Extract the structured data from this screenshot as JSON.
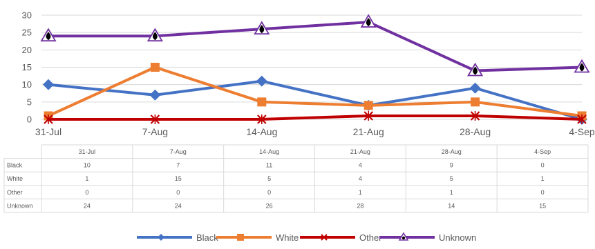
{
  "chart_data": {
    "type": "line",
    "categories": [
      "31-Jul",
      "7-Aug",
      "14-Aug",
      "21-Aug",
      "28-Aug",
      "4-Sep"
    ],
    "y_ticks": [
      0,
      5,
      10,
      15,
      20,
      25,
      30
    ],
    "ylim": [
      0,
      30
    ],
    "grid": true,
    "legend_position": "bottom",
    "data_table": true,
    "series": [
      {
        "name": "Black",
        "values": [
          10,
          7,
          11,
          4,
          9,
          0
        ],
        "color": "#4472C4",
        "marker": "diamond"
      },
      {
        "name": "White",
        "values": [
          1,
          15,
          5,
          4,
          5,
          1
        ],
        "color": "#ED7D31",
        "marker": "square"
      },
      {
        "name": "Other",
        "values": [
          0,
          0,
          0,
          1,
          1,
          0
        ],
        "color": "#C00000",
        "marker": "x"
      },
      {
        "name": "Unknown",
        "values": [
          24,
          24,
          26,
          28,
          14,
          15
        ],
        "color": "#7030A0",
        "marker": "triangle"
      }
    ]
  }
}
